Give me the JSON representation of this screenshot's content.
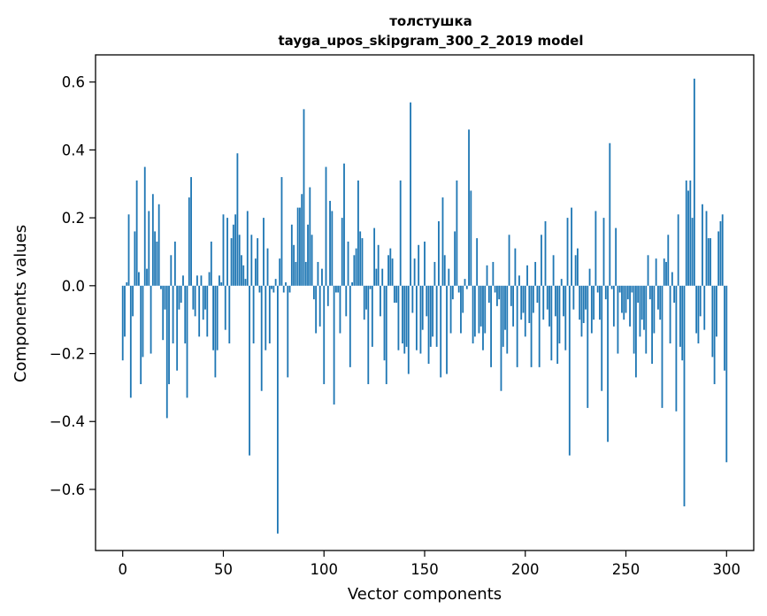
{
  "chart_data": {
    "type": "bar",
    "title": "толстушка",
    "subtitle": "tayga_upos_skipgram_300_2_2019 model",
    "xlabel": "Vector components",
    "ylabel": "Components values",
    "xlim": [
      -13.5,
      313.5
    ],
    "ylim": [
      -0.78,
      0.68
    ],
    "xticks": [
      0,
      50,
      100,
      150,
      200,
      250,
      300
    ],
    "yticks": [
      -0.6,
      -0.4,
      -0.2,
      0.0,
      0.2,
      0.4,
      0.6
    ],
    "xtick_labels": [
      "0",
      "50",
      "100",
      "150",
      "200",
      "250",
      "300"
    ],
    "ytick_labels": [
      "−0.6",
      "−0.4",
      "−0.2",
      "0.0",
      "0.2",
      "0.4",
      "0.6"
    ],
    "grid": false,
    "bar_color": "#1f77b4",
    "x_start": 0,
    "values": [
      -0.22,
      -0.15,
      0.01,
      0.21,
      -0.33,
      -0.09,
      0.16,
      0.31,
      0.04,
      -0.29,
      -0.21,
      0.35,
      0.05,
      0.22,
      -0.2,
      0.27,
      0.16,
      0.13,
      0.24,
      -0.01,
      -0.16,
      -0.07,
      -0.39,
      -0.29,
      0.09,
      -0.17,
      0.13,
      -0.25,
      -0.07,
      -0.05,
      0.03,
      -0.17,
      -0.33,
      0.26,
      0.32,
      -0.07,
      -0.09,
      0.03,
      -0.15,
      0.03,
      -0.1,
      -0.07,
      -0.15,
      0.04,
      0.13,
      -0.19,
      -0.27,
      -0.19,
      0.03,
      0.01,
      0.21,
      -0.13,
      0.2,
      -0.17,
      0.14,
      0.18,
      0.21,
      0.39,
      0.15,
      0.09,
      0.06,
      0.02,
      0.22,
      -0.5,
      0.15,
      -0.17,
      0.08,
      0.14,
      -0.02,
      -0.31,
      0.2,
      -0.19,
      0.11,
      -0.17,
      -0.01,
      -0.02,
      0.02,
      -0.73,
      0.08,
      0.32,
      -0.02,
      0.01,
      -0.27,
      -0.02,
      0.18,
      0.12,
      0.07,
      0.23,
      0.23,
      0.27,
      0.52,
      0.07,
      0.18,
      0.29,
      0.15,
      -0.04,
      -0.14,
      0.07,
      -0.12,
      0.05,
      -0.29,
      0.35,
      -0.06,
      0.25,
      0.22,
      -0.35,
      -0.02,
      -0.02,
      -0.14,
      0.2,
      0.36,
      -0.09,
      0.13,
      -0.24,
      0.01,
      0.09,
      0.11,
      0.31,
      0.16,
      0.14,
      -0.1,
      -0.07,
      -0.29,
      -0.01,
      -0.18,
      0.17,
      0.05,
      0.12,
      -0.09,
      0.05,
      -0.22,
      -0.29,
      0.09,
      0.11,
      0.08,
      -0.05,
      -0.05,
      -0.19,
      0.31,
      -0.17,
      -0.2,
      -0.18,
      -0.26,
      0.54,
      -0.08,
      0.08,
      -0.19,
      0.12,
      -0.2,
      -0.13,
      0.13,
      -0.09,
      -0.23,
      -0.18,
      -0.15,
      0.07,
      -0.18,
      0.19,
      -0.27,
      0.26,
      0.09,
      -0.26,
      0.05,
      -0.14,
      -0.04,
      0.16,
      0.31,
      -0.02,
      -0.14,
      -0.08,
      0.02,
      -0.01,
      0.46,
      0.28,
      -0.17,
      -0.15,
      0.14,
      -0.14,
      -0.12,
      -0.19,
      -0.14,
      0.06,
      -0.05,
      -0.24,
      0.07,
      -0.02,
      -0.06,
      -0.04,
      -0.31,
      -0.18,
      -0.13,
      -0.2,
      0.15,
      -0.06,
      -0.12,
      0.11,
      -0.24,
      0.03,
      -0.1,
      -0.08,
      -0.15,
      0.06,
      -0.11,
      -0.24,
      -0.08,
      0.07,
      -0.05,
      -0.24,
      0.15,
      -0.1,
      0.19,
      -0.07,
      -0.12,
      -0.22,
      0.09,
      -0.09,
      -0.23,
      -0.17,
      0.02,
      -0.09,
      -0.19,
      0.2,
      -0.5,
      0.23,
      -0.07,
      0.09,
      0.11,
      -0.1,
      -0.15,
      -0.11,
      -0.07,
      -0.36,
      0.05,
      -0.14,
      -0.1,
      0.22,
      -0.02,
      -0.1,
      -0.31,
      0.2,
      -0.04,
      -0.46,
      0.42,
      -0.01,
      -0.12,
      0.17,
      -0.2,
      -0.02,
      -0.08,
      -0.1,
      -0.08,
      -0.04,
      -0.12,
      -0.02,
      -0.2,
      -0.27,
      -0.05,
      -0.15,
      -0.1,
      -0.13,
      -0.2,
      0.09,
      -0.04,
      -0.23,
      -0.14,
      0.08,
      -0.07,
      -0.1,
      -0.36,
      0.08,
      0.07,
      0.15,
      -0.17,
      0.04,
      -0.05,
      -0.37,
      0.21,
      -0.18,
      -0.22,
      -0.65,
      0.31,
      0.28,
      0.31,
      0.2,
      0.61,
      -0.14,
      -0.17,
      -0.09,
      0.24,
      -0.13,
      0.22,
      0.14,
      0.14,
      -0.21,
      -0.29,
      -0.15,
      0.16,
      0.19,
      0.21,
      -0.25,
      -0.52
    ]
  }
}
